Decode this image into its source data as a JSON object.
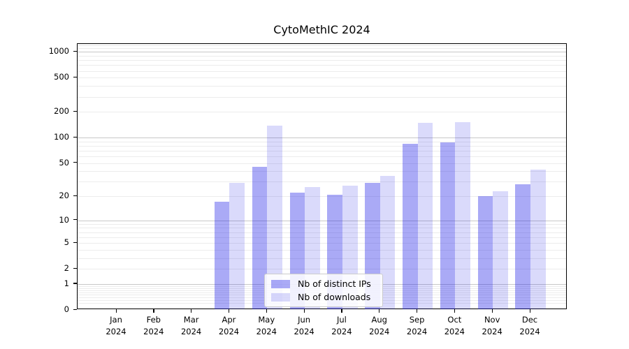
{
  "title": "CytoMethIC 2024",
  "chart_data": {
    "type": "bar",
    "title": "CytoMethIC 2024",
    "yscale": "log1p",
    "grid": true,
    "months": [
      "Jan",
      "Feb",
      "Mar",
      "Apr",
      "May",
      "Jun",
      "Jul",
      "Aug",
      "Sep",
      "Oct",
      "Nov",
      "Dec"
    ],
    "year_label": "2024",
    "series": [
      {
        "name": "Nb of distinct IPs",
        "color": "rgba(25,25,230,0.37)",
        "values": [
          0,
          0,
          0,
          17,
          45,
          22,
          21,
          29,
          85,
          88,
          20,
          28
        ]
      },
      {
        "name": "Nb of downloads",
        "color": "rgba(25,25,230,0.16)",
        "values": [
          0,
          0,
          0,
          29,
          137,
          26,
          27,
          35,
          148,
          152,
          23,
          42
        ]
      }
    ],
    "yticks": [
      0,
      1,
      2,
      5,
      10,
      20,
      50,
      100,
      200,
      500,
      1000
    ],
    "ytick_labels": [
      "0",
      "1",
      "2",
      "5",
      "10",
      "20",
      "50",
      "100",
      "200",
      "500",
      "1000"
    ],
    "major_gridlines": [
      1,
      10,
      100,
      1000
    ],
    "minor_gridlines": [
      0.2,
      0.3,
      0.4,
      0.5,
      0.6,
      0.7,
      0.8,
      0.9,
      2,
      3,
      4,
      5,
      6,
      7,
      8,
      9,
      20,
      30,
      40,
      50,
      60,
      70,
      80,
      90,
      200,
      300,
      400,
      500,
      600,
      700,
      800,
      900,
      1100,
      1200
    ],
    "ylim": [
      0,
      1236
    ],
    "legend_position": "lower center",
    "legend": [
      "Nb of distinct IPs",
      "Nb of downloads"
    ]
  },
  "colors": {
    "background": "#ffffff",
    "bar_distinct_ips": "rgba(25,25,230,0.37)",
    "bar_downloads": "rgba(25,25,230,0.16)",
    "axis": "#000000",
    "grid_major": "#c8c8c8",
    "grid_minor": "#ececec",
    "legend_border": "#cccccc"
  }
}
